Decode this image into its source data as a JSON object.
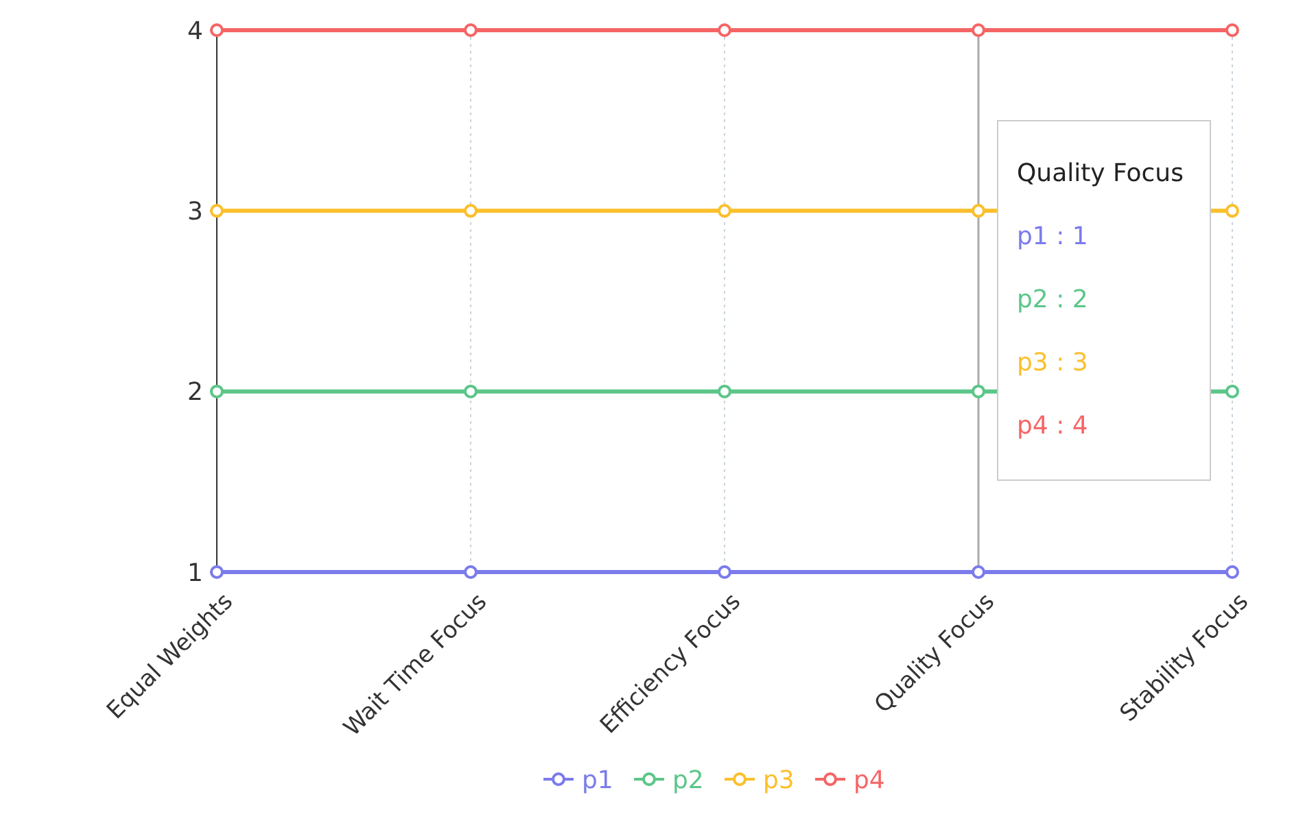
{
  "chart_data": {
    "type": "line",
    "categories": [
      "Equal Weights",
      "Wait Time Focus",
      "Efficiency Focus",
      "Quality Focus",
      "Stability Focus"
    ],
    "series": [
      {
        "name": "p1",
        "color": "#7b7bec",
        "values": [
          1,
          1,
          1,
          1,
          1
        ]
      },
      {
        "name": "p2",
        "color": "#5cc689",
        "values": [
          2,
          2,
          2,
          2,
          2
        ]
      },
      {
        "name": "p3",
        "color": "#fbbf2c",
        "values": [
          3,
          3,
          3,
          3,
          3
        ]
      },
      {
        "name": "p4",
        "color": "#f56565",
        "values": [
          4,
          4,
          4,
          4,
          4
        ]
      }
    ],
    "ylim": [
      1,
      4
    ],
    "yticks": [
      1,
      2,
      3,
      4
    ],
    "grid": "x",
    "legend": "bottom",
    "marker": "circle",
    "line_style": "solid",
    "ref_lines": [
      {
        "axis": "x",
        "value": "Quality Focus",
        "color": "#aaaaaa"
      }
    ],
    "annotations": [
      "Quality Focus",
      "p1 : 1",
      "p2 : 2",
      "p3 : 3",
      "p4 : 4"
    ]
  }
}
